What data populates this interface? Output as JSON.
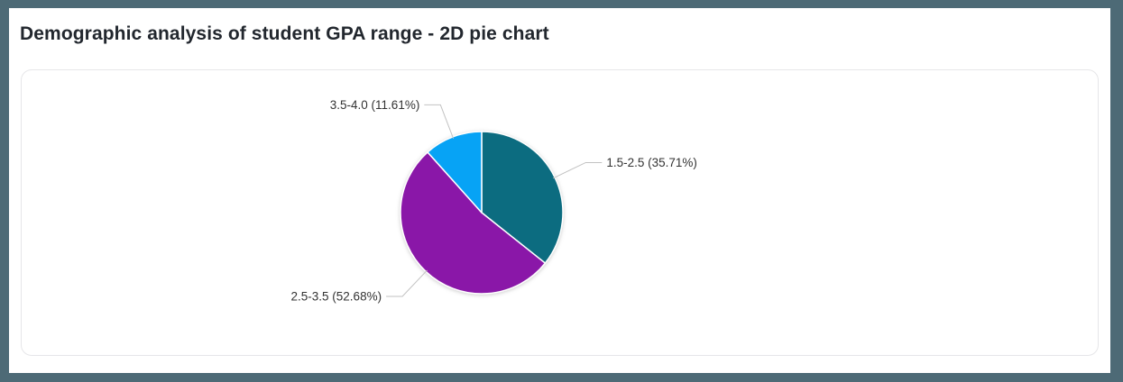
{
  "page": {
    "title": "Demographic analysis of student GPA range - 2D pie chart"
  },
  "colors": {
    "frame_border": "#4d6a76",
    "panel_border": "#e6e6e9",
    "title_text": "#22272e",
    "label_text": "#333333",
    "leader_line": "#c2c2c2",
    "slice_gap": "#ffffff"
  },
  "chart_data": {
    "type": "pie",
    "title": "Demographic analysis of student GPA range - 2D pie chart",
    "value_unit": "percent",
    "start_angle": "12 o'clock",
    "direction": "clockwise",
    "labels_position": "outside with leader lines",
    "legend": "none",
    "slices": [
      {
        "category": "1.5-2.5",
        "value": 35.71,
        "label": "1.5-2.5 (35.71%)",
        "color": "#0c6c80"
      },
      {
        "category": "2.5-3.5",
        "value": 52.68,
        "label": "2.5-3.5 (52.68%)",
        "color": "#8a17a8"
      },
      {
        "category": "3.5-4.0",
        "value": 11.61,
        "label": "3.5-4.0 (11.61%)",
        "color": "#07a3f5"
      }
    ]
  }
}
